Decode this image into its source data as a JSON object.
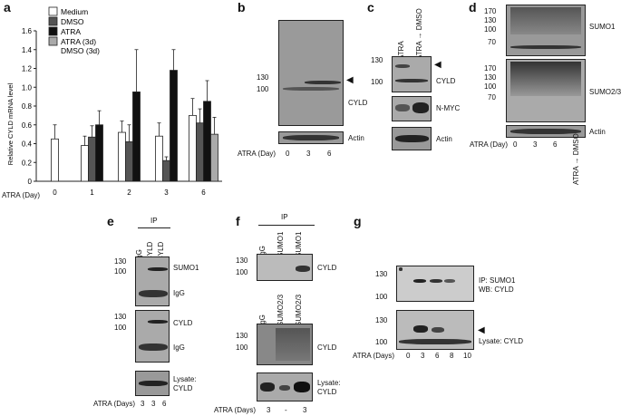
{
  "panels": {
    "a": "a",
    "b": "b",
    "c": "c",
    "d": "d",
    "e": "e",
    "f": "f",
    "g": "g"
  },
  "chart_data": {
    "type": "bar",
    "ylabel": "Relative CYLD mRNA level",
    "xlabel": "ATRA (Day)",
    "categories": [
      "0",
      "1",
      "2",
      "3",
      "6"
    ],
    "ylim": [
      0,
      1.6
    ],
    "yticks": [
      "0",
      "0.2",
      "0.4",
      "0.6",
      "0.8",
      "1.0",
      "1.2",
      "1.4",
      "1.6"
    ],
    "legend_position": "top-left",
    "series": [
      {
        "name": "Medium",
        "color": "#ffffff",
        "values": [
          0.45,
          0.38,
          0.52,
          0.48,
          0.7
        ],
        "errors": [
          0.15,
          0.1,
          0.12,
          0.14,
          0.18
        ]
      },
      {
        "name": "DMSO",
        "color": "#555555",
        "values": [
          null,
          0.47,
          0.42,
          0.22,
          0.62
        ],
        "errors": [
          null,
          0.12,
          0.18,
          0.04,
          0.15
        ]
      },
      {
        "name": "ATRA",
        "color": "#111111",
        "values": [
          null,
          0.6,
          0.95,
          1.18,
          0.85
        ],
        "errors": [
          null,
          0.15,
          0.45,
          0.22,
          0.22
        ]
      },
      {
        "name": "ATRA (3d)\nDMSO (3d)",
        "color": "#aaaaaa",
        "values": [
          null,
          null,
          null,
          null,
          0.5
        ],
        "errors": [
          null,
          null,
          null,
          null,
          0.18
        ]
      }
    ]
  },
  "panel_b": {
    "mw": [
      "130",
      "100"
    ],
    "band": "CYLD",
    "loading": "Actin",
    "xlabel": "ATRA (Day)",
    "lanes": [
      "0",
      "3",
      "6"
    ]
  },
  "panel_c": {
    "lanes": [
      "ATRA",
      "ATRA → DMSO"
    ],
    "mw": [
      "130",
      "100"
    ],
    "bands": [
      "CYLD",
      "N-MYC",
      "Actin"
    ]
  },
  "panel_d": {
    "mw1": [
      "170",
      "130",
      "100",
      "70"
    ],
    "mw2": [
      "170",
      "130",
      "100",
      "70"
    ],
    "bands": [
      "SUMO1",
      "SUMO2/3",
      "Actin"
    ],
    "xlabel": "ATRA (Day)",
    "lanes": [
      "0",
      "3",
      "6"
    ],
    "extra_lane": "ATRA → DMSO"
  },
  "panel_e": {
    "ip": "IP",
    "lanes": [
      "IgG",
      "CYLD",
      "CYLD"
    ],
    "mw1": [
      "130",
      "100"
    ],
    "mw2": [
      "130",
      "100"
    ],
    "labels1": [
      "SUMO1",
      "IgG"
    ],
    "labels2": [
      "CYLD",
      "IgG"
    ],
    "lysate": "Lysate:\nCYLD",
    "xlabel": "ATRA (Days)",
    "days": [
      "3",
      "3",
      "6"
    ]
  },
  "panel_f": {
    "ip": "IP",
    "lanes1": [
      "IgG",
      "SUMO1",
      "SUMO1"
    ],
    "lanes2": [
      "IgG",
      "SUMO2/3",
      "SUMO2/3"
    ],
    "mw1": [
      "130",
      "100"
    ],
    "mw2": [
      "130",
      "100"
    ],
    "label1": "CYLD",
    "label2": "CYLD",
    "lysate": "Lysate:\nCYLD",
    "xlabel": "ATRA (Days)",
    "days": [
      "3",
      "-",
      "3"
    ]
  },
  "panel_g": {
    "mw1": [
      "130",
      "100"
    ],
    "mw2": [
      "130",
      "100"
    ],
    "ip_label": "IP:  SUMO1",
    "wb_label": "WB: CYLD",
    "lysate": "Lysate: CYLD",
    "xlabel": "ATRA (Days)",
    "days": [
      "0",
      "3",
      "6",
      "8",
      "10"
    ]
  }
}
